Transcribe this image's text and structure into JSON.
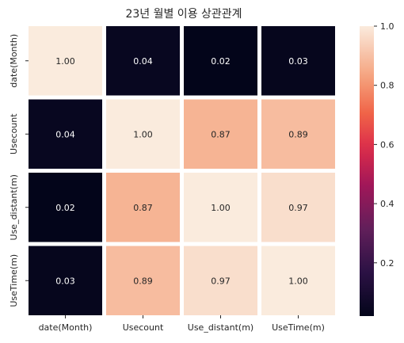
{
  "chart_data": {
    "type": "heatmap",
    "title": "23년 월별 이용 상관관계",
    "xlabel": "",
    "ylabel": "",
    "row_labels": [
      "date(Month)",
      "Usecount",
      "Use_distant(m)",
      "UseTime(m)"
    ],
    "col_labels": [
      "date(Month)",
      "Usecount",
      "Use_distant(m)",
      "UseTime(m)"
    ],
    "values": [
      [
        1.0,
        0.04,
        0.02,
        0.03
      ],
      [
        0.04,
        1.0,
        0.87,
        0.89
      ],
      [
        0.02,
        0.87,
        1.0,
        0.97
      ],
      [
        0.03,
        0.89,
        0.97,
        1.0
      ]
    ],
    "cell_labels": [
      [
        "1.00",
        "0.04",
        "0.02",
        "0.03"
      ],
      [
        "0.04",
        "1.00",
        "0.87",
        "0.89"
      ],
      [
        "0.02",
        "0.87",
        "1.00",
        "0.97"
      ],
      [
        "0.03",
        "0.89",
        "0.97",
        "1.00"
      ]
    ],
    "colorbar": {
      "range": [
        0.02,
        1.0
      ],
      "ticks": [
        0.2,
        0.4,
        0.6,
        0.8,
        1.0
      ],
      "tick_labels": [
        "0.2",
        "0.4",
        "0.6",
        "0.8",
        "1.0"
      ],
      "colormap": "rocket"
    },
    "grid": false
  }
}
